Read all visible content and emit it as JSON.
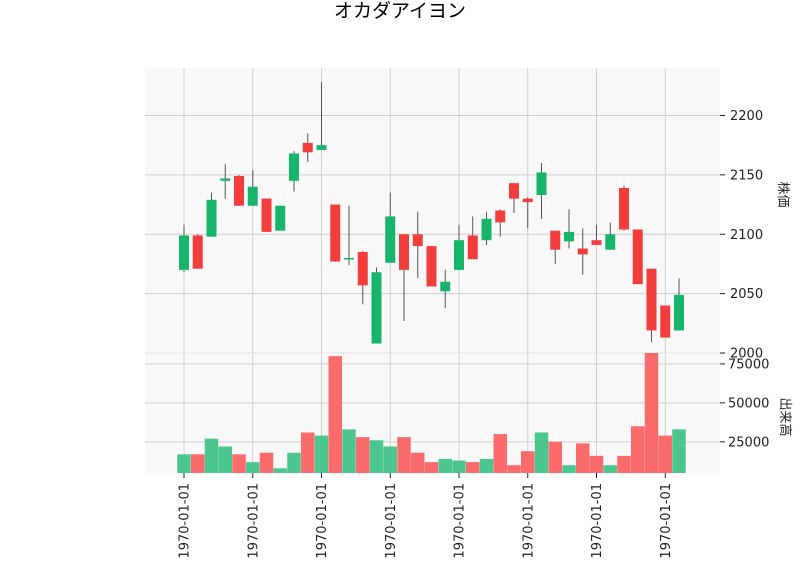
{
  "title": "オカダアイヨン",
  "chart_data": {
    "type": "candlestick",
    "title": "オカダアイヨン",
    "price_panel": {
      "ylabel": "株価",
      "ylim": [
        2000,
        2240
      ],
      "yticks": [
        2000,
        2050,
        2100,
        2150,
        2200
      ]
    },
    "volume_panel": {
      "ylabel": "出来高",
      "ylim": [
        5000,
        82000
      ],
      "yticks": [
        25000,
        50000,
        75000
      ],
      "ytick_labels": [
        "25000",
        "50000",
        "75000"
      ]
    },
    "x_tick_label": "1970-01-01",
    "x_tick_indices": [
      1,
      6,
      11,
      16,
      21,
      26,
      31,
      36
    ],
    "grid": true,
    "colors": {
      "up": "#16b56b",
      "down": "#f23d3d",
      "up_volume": "#4cc68f",
      "down_volume": "#fa6b6b",
      "panel_bg": "#f8f8f8",
      "grid": "#d0d0d0",
      "wick": "#555555"
    },
    "candles": [
      {
        "open": 2070,
        "high": 2108,
        "low": 2068,
        "close": 2099,
        "volume": 17000
      },
      {
        "open": 2099,
        "high": 2100,
        "low": 2071,
        "close": 2071,
        "volume": 17000
      },
      {
        "open": 2098,
        "high": 2135,
        "low": 2098,
        "close": 2129,
        "volume": 27000
      },
      {
        "open": 2145,
        "high": 2159,
        "low": 2130,
        "close": 2147,
        "volume": 22000
      },
      {
        "open": 2149,
        "high": 2150,
        "low": 2124,
        "close": 2124,
        "volume": 17000
      },
      {
        "open": 2124,
        "high": 2154,
        "low": 2124,
        "close": 2140,
        "volume": 12000
      },
      {
        "open": 2130,
        "high": 2130,
        "low": 2102,
        "close": 2102,
        "volume": 18000
      },
      {
        "open": 2103,
        "high": 2124,
        "low": 2103,
        "close": 2124,
        "volume": 8000
      },
      {
        "open": 2145,
        "high": 2170,
        "low": 2136,
        "close": 2168,
        "volume": 18000
      },
      {
        "open": 2177,
        "high": 2185,
        "low": 2161,
        "close": 2169,
        "volume": 31000
      },
      {
        "open": 2171,
        "high": 2228,
        "low": 2171,
        "close": 2175,
        "volume": 29000
      },
      {
        "open": 2125,
        "high": 2125,
        "low": 2077,
        "close": 2077,
        "volume": 80000
      },
      {
        "open": 2080,
        "high": 2124,
        "low": 2074,
        "close": 2080,
        "volume": 33000
      },
      {
        "open": 2085,
        "high": 2086,
        "low": 2041,
        "close": 2057,
        "volume": 28000
      },
      {
        "open": 2008,
        "high": 2072,
        "low": 2008,
        "close": 2068,
        "volume": 26000
      },
      {
        "open": 2076,
        "high": 2135,
        "low": 2076,
        "close": 2115,
        "volume": 22000
      },
      {
        "open": 2100,
        "high": 2100,
        "low": 2027,
        "close": 2070,
        "volume": 28000
      },
      {
        "open": 2100,
        "high": 2119,
        "low": 2063,
        "close": 2090,
        "volume": 18000
      },
      {
        "open": 2090,
        "high": 2090,
        "low": 2056,
        "close": 2056,
        "volume": 12000
      },
      {
        "open": 2052,
        "high": 2070,
        "low": 2038,
        "close": 2060,
        "volume": 14000
      },
      {
        "open": 2070,
        "high": 2108,
        "low": 2070,
        "close": 2095,
        "volume": 13000
      },
      {
        "open": 2099,
        "high": 2115,
        "low": 2079,
        "close": 2079,
        "volume": 12000
      },
      {
        "open": 2095,
        "high": 2119,
        "low": 2091,
        "close": 2113,
        "volume": 14000
      },
      {
        "open": 2120,
        "high": 2121,
        "low": 2098,
        "close": 2110,
        "volume": 30000
      },
      {
        "open": 2143,
        "high": 2143,
        "low": 2118,
        "close": 2130,
        "volume": 10000
      },
      {
        "open": 2130,
        "high": 2131,
        "low": 2105,
        "close": 2127,
        "volume": 19000
      },
      {
        "open": 2133,
        "high": 2160,
        "low": 2113,
        "close": 2152,
        "volume": 31000
      },
      {
        "open": 2103,
        "high": 2103,
        "low": 2075,
        "close": 2087,
        "volume": 25000
      },
      {
        "open": 2094,
        "high": 2121,
        "low": 2088,
        "close": 2102,
        "volume": 10000
      },
      {
        "open": 2088,
        "high": 2105,
        "low": 2066,
        "close": 2083,
        "volume": 24000
      },
      {
        "open": 2095,
        "high": 2108,
        "low": 2091,
        "close": 2091,
        "volume": 16000
      },
      {
        "open": 2087,
        "high": 2110,
        "low": 2087,
        "close": 2100,
        "volume": 10000
      },
      {
        "open": 2139,
        "high": 2141,
        "low": 2103,
        "close": 2104,
        "volume": 16000
      },
      {
        "open": 2104,
        "high": 2104,
        "low": 2058,
        "close": 2058,
        "volume": 35000
      },
      {
        "open": 2071,
        "high": 2071,
        "low": 2009,
        "close": 2019,
        "volume": 82000
      },
      {
        "open": 2040,
        "high": 2040,
        "low": 2013,
        "close": 2013,
        "volume": 29000
      },
      {
        "open": 2019,
        "high": 2063,
        "low": 2019,
        "close": 2049,
        "volume": 33000
      }
    ]
  }
}
